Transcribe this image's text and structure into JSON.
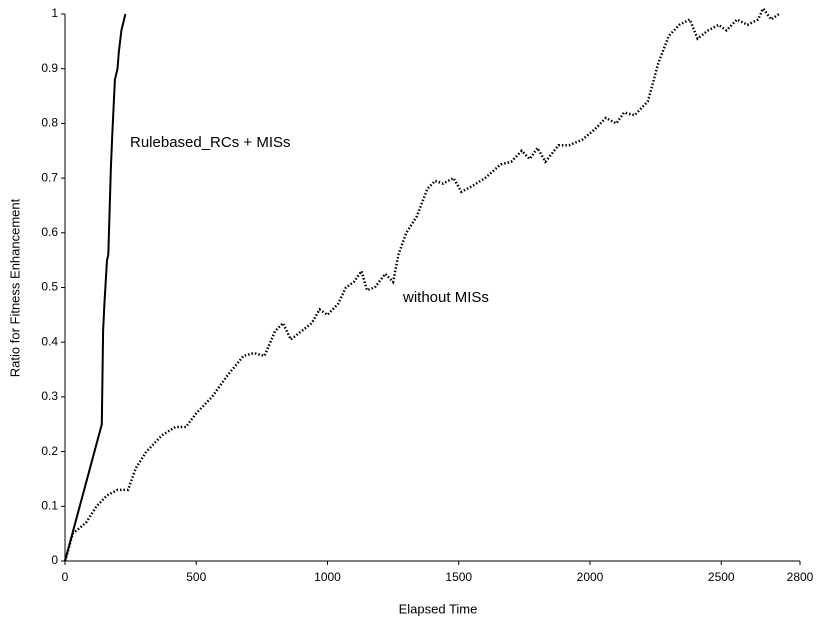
{
  "chart_data": {
    "type": "line",
    "xlabel": "Elapsed Time",
    "ylabel": "Ratio for Fitness Enhancement",
    "xlim": [
      0,
      2800
    ],
    "xticks": [
      0,
      500,
      1000,
      1500,
      2000,
      2500,
      2800
    ],
    "ylim": [
      0,
      1
    ],
    "yticks": [
      0,
      0.1,
      0.2,
      0.3,
      0.4,
      0.5,
      0.6,
      0.7,
      0.8,
      0.9,
      1
    ],
    "grid": false,
    "series": [
      {
        "name": "Rulebased_RCs + MISs",
        "color": "#000000",
        "dash": "solid",
        "x": [
          0,
          140,
          145,
          150,
          160,
          165,
          175,
          180,
          190,
          195,
          200,
          205,
          215,
          230
        ],
        "values": [
          0,
          0.25,
          0.42,
          0.47,
          0.55,
          0.56,
          0.72,
          0.78,
          0.88,
          0.89,
          0.9,
          0.93,
          0.97,
          1.0
        ]
      },
      {
        "name": "without MISs",
        "color": "#000000",
        "dash": "dotted",
        "x": [
          0,
          30,
          80,
          120,
          160,
          200,
          240,
          270,
          310,
          370,
          420,
          460,
          500,
          560,
          620,
          680,
          720,
          760,
          800,
          830,
          860,
          900,
          940,
          970,
          1000,
          1040,
          1070,
          1100,
          1130,
          1150,
          1180,
          1220,
          1250,
          1270,
          1300,
          1340,
          1380,
          1410,
          1440,
          1480,
          1510,
          1550,
          1600,
          1660,
          1700,
          1740,
          1770,
          1800,
          1830,
          1880,
          1920,
          1970,
          2020,
          2060,
          2100,
          2130,
          2170,
          2220,
          2260,
          2300,
          2340,
          2380,
          2410,
          2450,
          2490,
          2520,
          2560,
          2600,
          2640,
          2660,
          2690,
          2720
        ],
        "values": [
          0,
          0.05,
          0.07,
          0.1,
          0.12,
          0.13,
          0.13,
          0.17,
          0.2,
          0.23,
          0.245,
          0.245,
          0.27,
          0.3,
          0.34,
          0.375,
          0.38,
          0.375,
          0.42,
          0.435,
          0.405,
          0.42,
          0.435,
          0.46,
          0.45,
          0.47,
          0.5,
          0.51,
          0.53,
          0.495,
          0.5,
          0.525,
          0.51,
          0.56,
          0.6,
          0.63,
          0.68,
          0.695,
          0.69,
          0.7,
          0.675,
          0.685,
          0.7,
          0.725,
          0.73,
          0.75,
          0.735,
          0.755,
          0.73,
          0.76,
          0.76,
          0.77,
          0.79,
          0.81,
          0.8,
          0.82,
          0.815,
          0.84,
          0.91,
          0.96,
          0.98,
          0.99,
          0.955,
          0.97,
          0.98,
          0.97,
          0.99,
          0.98,
          0.99,
          1.01,
          0.99,
          1.0
        ]
      }
    ]
  }
}
